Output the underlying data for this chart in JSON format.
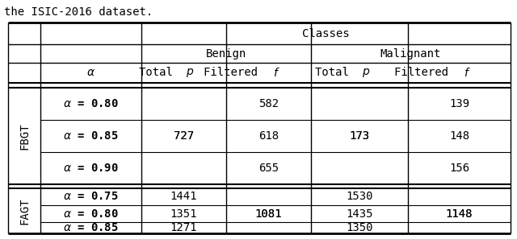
{
  "top_text": "the ISIC-2016 dataset.",
  "header_row1": [
    "",
    "",
    "Classes",
    "",
    "",
    ""
  ],
  "header_row2": [
    "",
    "",
    "Benign",
    "",
    "Malignant",
    ""
  ],
  "header_row3": [
    "",
    "α",
    "Total p",
    "Filtered f",
    "Total p",
    "Filtered f"
  ],
  "fbgt_rows": [
    [
      "α = 0.80",
      "",
      "582",
      "",
      "139"
    ],
    [
      "α = 0.85",
      "727",
      "618",
      "173",
      "148"
    ],
    [
      "α = 0.90",
      "",
      "655",
      "",
      "156"
    ]
  ],
  "fagt_rows": [
    [
      "α = 0.75",
      "1441",
      "",
      "1530",
      ""
    ],
    [
      "α = 0.80",
      "1351",
      "1081",
      "1435",
      "1148"
    ],
    [
      "α = 0.85",
      "1271",
      "",
      "1350",
      ""
    ]
  ],
  "col_labels_bold": [
    false,
    true,
    false,
    true,
    false,
    true
  ],
  "bg_color": "#ffffff",
  "line_color": "#000000",
  "font_size": 10,
  "font_family": "monospace"
}
